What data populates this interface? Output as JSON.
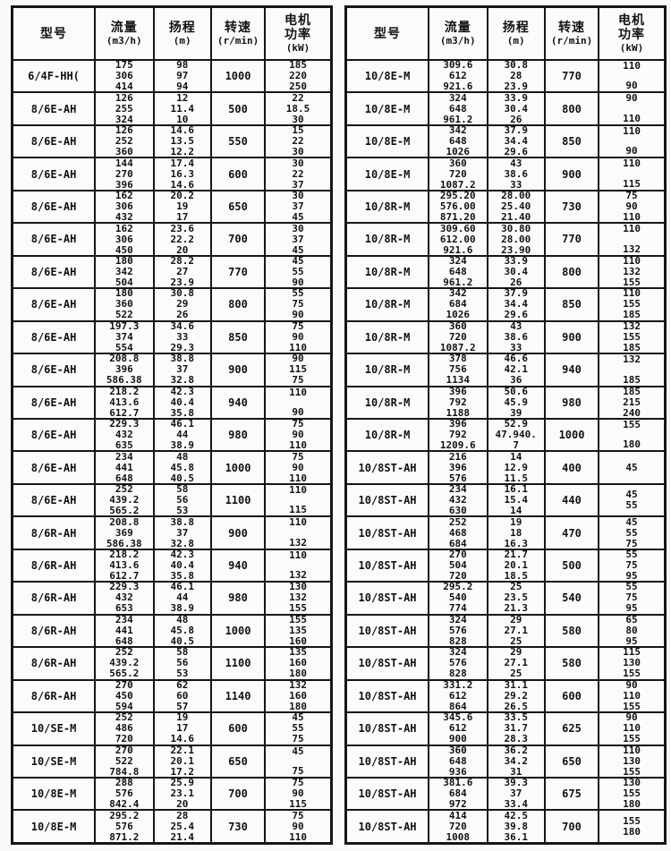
{
  "columns": {
    "model": "型号",
    "flow": [
      "流量",
      "(m3/h)"
    ],
    "head": [
      "扬程",
      "(m)"
    ],
    "speed": [
      "转速",
      "(r/min)"
    ],
    "power": [
      "电机",
      "功率",
      "(kW)"
    ]
  },
  "tables": [
    {
      "rows": [
        {
          "model": "6/4F-HH(",
          "flow": [
            "175",
            "306",
            "414"
          ],
          "head": [
            "98",
            "97",
            "94"
          ],
          "speed": "1000",
          "power": [
            "185",
            "220",
            "250"
          ]
        },
        {
          "model": "8/6E-AH",
          "flow": [
            "126",
            "255",
            "324"
          ],
          "head": [
            "12",
            "11.4",
            "10"
          ],
          "speed": "500",
          "power": [
            "22",
            "18.5",
            "30"
          ]
        },
        {
          "model": "8/6E-AH",
          "flow": [
            "126",
            "252",
            "360"
          ],
          "head": [
            "14.6",
            "13.5",
            "12.2"
          ],
          "speed": "550",
          "power": [
            "15",
            "22",
            "30"
          ]
        },
        {
          "model": "8/6E-AH",
          "flow": [
            "144",
            "270",
            "396"
          ],
          "head": [
            "17.4",
            "16.3",
            "14.6"
          ],
          "speed": "600",
          "power": [
            "30",
            "22",
            "37"
          ]
        },
        {
          "model": "8/6E-AH",
          "flow": [
            "162",
            "306",
            "432"
          ],
          "head": [
            "20.2",
            "19",
            "17"
          ],
          "speed": "650",
          "power": [
            "30",
            "37",
            "45"
          ]
        },
        {
          "model": "8/6E-AH",
          "flow": [
            "162",
            "306",
            "450"
          ],
          "head": [
            "23.6",
            "22.2",
            "20"
          ],
          "speed": "700",
          "power": [
            "30",
            "37",
            "45"
          ]
        },
        {
          "model": "8/6E-AH",
          "flow": [
            "180",
            "342",
            "504"
          ],
          "head": [
            "28.2",
            "27",
            "23.9"
          ],
          "speed": "770",
          "power": [
            "45",
            "55",
            "90"
          ]
        },
        {
          "model": "8/6E-AH",
          "flow": [
            "180",
            "360",
            "522"
          ],
          "head": [
            "30.8",
            "29",
            "26"
          ],
          "speed": "800",
          "power": [
            "55",
            "75",
            "90"
          ]
        },
        {
          "model": "8/6E-AH",
          "flow": [
            "197.3",
            "374",
            "554"
          ],
          "head": [
            "34.6",
            "33",
            "29.3"
          ],
          "speed": "850",
          "power": [
            "75",
            "90",
            "110"
          ]
        },
        {
          "model": "8/6E-AH",
          "flow": [
            "208.8",
            "396",
            "586.38"
          ],
          "head": [
            "38.8",
            "37",
            "32.8"
          ],
          "speed": "900",
          "power": [
            "90",
            "115",
            "75"
          ]
        },
        {
          "model": "8/6E-AH",
          "flow": [
            "218.2",
            "413.6",
            "612.7"
          ],
          "head": [
            "42.3",
            "40.4",
            "35.8"
          ],
          "speed": "940",
          "power": [
            "110",
            "",
            "90"
          ]
        },
        {
          "model": "8/6E-AH",
          "flow": [
            "229.3",
            "432",
            "635"
          ],
          "head": [
            "46.1",
            "44",
            "38.9"
          ],
          "speed": "980",
          "power": [
            "75",
            "90",
            "110"
          ]
        },
        {
          "model": "8/6E-AH",
          "flow": [
            "234",
            "441",
            "648"
          ],
          "head": [
            "48",
            "45.8",
            "40.5"
          ],
          "speed": "1000",
          "power": [
            "75",
            "90",
            "110"
          ]
        },
        {
          "model": "8/6E-AH",
          "flow": [
            "252",
            "439.2",
            "565.2"
          ],
          "head": [
            "58",
            "56",
            "53"
          ],
          "speed": "1100",
          "power": [
            "110",
            "",
            "115"
          ]
        },
        {
          "model": "8/6R-AH",
          "flow": [
            "208.8",
            "369",
            "586.38"
          ],
          "head": [
            "38.8",
            "37",
            "32.8"
          ],
          "speed": "900",
          "power": [
            "110",
            "",
            "132"
          ]
        },
        {
          "model": "8/6R-AH",
          "flow": [
            "218.2",
            "413.6",
            "612.7"
          ],
          "head": [
            "42.3",
            "40.4",
            "35.8"
          ],
          "speed": "940",
          "power": [
            "110",
            "",
            "132"
          ]
        },
        {
          "model": "8/6R-AH",
          "flow": [
            "229.3",
            "432",
            "653"
          ],
          "head": [
            "46.1",
            "44",
            "38.9"
          ],
          "speed": "980",
          "power": [
            "130",
            "132",
            "155"
          ]
        },
        {
          "model": "8/6R-AH",
          "flow": [
            "234",
            "441",
            "648"
          ],
          "head": [
            "48",
            "45.8",
            "40.5"
          ],
          "speed": "1000",
          "power": [
            "155",
            "135",
            "160"
          ]
        },
        {
          "model": "8/6R-AH",
          "flow": [
            "252",
            "439.2",
            "565.2"
          ],
          "head": [
            "58",
            "56",
            "53"
          ],
          "speed": "1100",
          "power": [
            "135",
            "160",
            "180"
          ]
        },
        {
          "model": "8/6R-AH",
          "flow": [
            "270",
            "450",
            "594"
          ],
          "head": [
            "62",
            "60",
            "57"
          ],
          "speed": "1140",
          "power": [
            "132",
            "160",
            "180"
          ]
        },
        {
          "model": "10/SE-M",
          "flow": [
            "252",
            "486",
            "720"
          ],
          "head": [
            "19",
            "17",
            "14.6"
          ],
          "speed": "600",
          "power": [
            "45",
            "55",
            "75"
          ]
        },
        {
          "model": "10/SE-M",
          "flow": [
            "270",
            "522",
            "784.8"
          ],
          "head": [
            "22.1",
            "20.1",
            "17.2"
          ],
          "speed": "650",
          "power": [
            "45",
            "",
            "75"
          ]
        },
        {
          "model": "10/8E-M",
          "flow": [
            "288",
            "576",
            "842.4"
          ],
          "head": [
            "25.9",
            "23.1",
            "20"
          ],
          "speed": "700",
          "power": [
            "75",
            "90",
            "115"
          ]
        },
        {
          "model": "10/8E-M",
          "flow": [
            "295.2",
            "576",
            "871.2"
          ],
          "head": [
            "28",
            "25.4",
            "21.4"
          ],
          "speed": "730",
          "power": [
            "75",
            "90",
            "110"
          ]
        }
      ]
    },
    {
      "rows": [
        {
          "model": "10/8E-M",
          "flow": [
            "309.6",
            "612",
            "921.6"
          ],
          "head": [
            "30.8",
            "28",
            "23.9"
          ],
          "speed": "770",
          "power": [
            "110",
            "",
            "90"
          ]
        },
        {
          "model": "10/8E-M",
          "flow": [
            "324",
            "648",
            "961.2"
          ],
          "head": [
            "33.9",
            "30.4",
            "26"
          ],
          "speed": "800",
          "power": [
            "90",
            "",
            "110"
          ]
        },
        {
          "model": "10/8E-M",
          "flow": [
            "342",
            "648",
            "1026"
          ],
          "head": [
            "37.9",
            "34.4",
            "29.6"
          ],
          "speed": "850",
          "power": [
            "110",
            "",
            "90"
          ]
        },
        {
          "model": "10/8E-M",
          "flow": [
            "360",
            "720",
            "1087.2"
          ],
          "head": [
            "43",
            "38.6",
            "33"
          ],
          "speed": "900",
          "power": [
            "110",
            "",
            "115"
          ]
        },
        {
          "model": "10/8R-M",
          "flow": [
            "295.20",
            "576.00",
            "871.20"
          ],
          "head": [
            "28.00",
            "25.40",
            "21.40"
          ],
          "speed": "730",
          "power": [
            "75",
            "90",
            "110"
          ]
        },
        {
          "model": "10/8R-M",
          "flow": [
            "309.60",
            "612.00",
            "921.6"
          ],
          "head": [
            "30.80",
            "28.00",
            "23.90"
          ],
          "speed": "770",
          "power": [
            "110",
            "",
            "132"
          ]
        },
        {
          "model": "10/8R-M",
          "flow": [
            "324",
            "648",
            "961.2"
          ],
          "head": [
            "33.9",
            "30.4",
            "26"
          ],
          "speed": "800",
          "power": [
            "110",
            "132",
            "155"
          ]
        },
        {
          "model": "10/8R-M",
          "flow": [
            "342",
            "684",
            "1026"
          ],
          "head": [
            "37.9",
            "34.4",
            "29.6"
          ],
          "speed": "850",
          "power": [
            "110",
            "155",
            "185"
          ]
        },
        {
          "model": "10/8R-M",
          "flow": [
            "360",
            "720",
            "1087.2"
          ],
          "head": [
            "43",
            "38.6",
            "33"
          ],
          "speed": "900",
          "power": [
            "132",
            "155",
            "185"
          ]
        },
        {
          "model": "10/8R-M",
          "flow": [
            "378",
            "756",
            "1134"
          ],
          "head": [
            "46.6",
            "42.1",
            "36"
          ],
          "speed": "940",
          "power": [
            "132",
            "",
            "185"
          ]
        },
        {
          "model": "10/8R-M",
          "flow": [
            "396",
            "792",
            "1188"
          ],
          "head": [
            "50.6",
            "45.9",
            "39"
          ],
          "speed": "980",
          "power": [
            "185",
            "215",
            "240"
          ]
        },
        {
          "model": "10/8R-M",
          "flow": [
            "396",
            "792",
            "1209.6"
          ],
          "head": [
            "52.9",
            "47.940.",
            "7"
          ],
          "speed": "1000",
          "power": [
            "155",
            "",
            "180"
          ]
        },
        {
          "model": "10/8ST-AH",
          "flow": [
            "216",
            "396",
            "576"
          ],
          "head": [
            "14",
            "12.9",
            "11.5"
          ],
          "speed": "400",
          "power": [
            "45"
          ]
        },
        {
          "model": "10/8ST-AH",
          "flow": [
            "234",
            "432",
            "630"
          ],
          "head": [
            "16.1",
            "15.4",
            "14"
          ],
          "speed": "440",
          "power": [
            "45",
            "55"
          ]
        },
        {
          "model": "10/8ST-AH",
          "flow": [
            "252",
            "468",
            "684"
          ],
          "head": [
            "19",
            "18",
            "16.3"
          ],
          "speed": "470",
          "power": [
            "45",
            "55",
            "75"
          ]
        },
        {
          "model": "10/8ST-AH",
          "flow": [
            "270",
            "504",
            "720"
          ],
          "head": [
            "21.7",
            "20.1",
            "18.5"
          ],
          "speed": "500",
          "power": [
            "55",
            "75",
            "95"
          ]
        },
        {
          "model": "10/8ST-AH",
          "flow": [
            "295.2",
            "540",
            "774"
          ],
          "head": [
            "25",
            "23.5",
            "21.3"
          ],
          "speed": "540",
          "power": [
            "55",
            "75",
            "95"
          ]
        },
        {
          "model": "10/8ST-AH",
          "flow": [
            "324",
            "576",
            "828"
          ],
          "head": [
            "29",
            "27.1",
            "25"
          ],
          "speed": "580",
          "power": [
            "65",
            "80",
            "95"
          ]
        },
        {
          "model": "10/8ST-AH",
          "flow": [
            "324",
            "576",
            "828"
          ],
          "head": [
            "29",
            "27.1",
            "25"
          ],
          "speed": "580",
          "power": [
            "115",
            "130",
            "155"
          ]
        },
        {
          "model": "10/8ST-AH",
          "flow": [
            "331.2",
            "612",
            "864"
          ],
          "head": [
            "31.1",
            "29.2",
            "26.5"
          ],
          "speed": "600",
          "power": [
            "90",
            "110",
            "155"
          ]
        },
        {
          "model": "10/8ST-AH",
          "flow": [
            "345.6",
            "612",
            "900"
          ],
          "head": [
            "33.5",
            "31.7",
            "28.3"
          ],
          "speed": "625",
          "power": [
            "90",
            "110",
            "155"
          ]
        },
        {
          "model": "10/8ST-AH",
          "flow": [
            "360",
            "648",
            "936"
          ],
          "head": [
            "36.2",
            "34.2",
            "31"
          ],
          "speed": "650",
          "power": [
            "110",
            "130",
            "155"
          ]
        },
        {
          "model": "10/8ST-AH",
          "flow": [
            "381.6",
            "684",
            "972"
          ],
          "head": [
            "39.3",
            "37",
            "33.4"
          ],
          "speed": "675",
          "power": [
            "130",
            "155",
            "180"
          ]
        },
        {
          "model": "10/8ST-AH",
          "flow": [
            "414",
            "720",
            "1008"
          ],
          "head": [
            "42.5",
            "39.8",
            "36.1"
          ],
          "speed": "700",
          "power": [
            "155",
            "180"
          ]
        }
      ]
    }
  ]
}
